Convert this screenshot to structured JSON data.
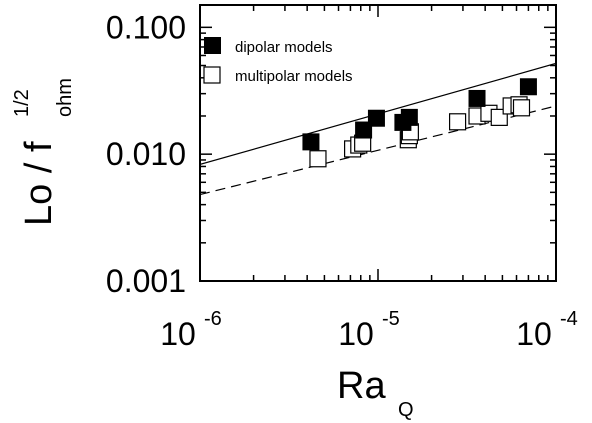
{
  "chart_data": {
    "type": "scatter",
    "x_scale": "log",
    "y_scale": "log",
    "xlim": [
      1e-06,
      0.0001
    ],
    "ylim": [
      0.001,
      0.15
    ],
    "x_ticks": [
      {
        "value": 1e-06,
        "base": "10",
        "exp": "-6"
      },
      {
        "value": 1e-05,
        "base": "10",
        "exp": "-5"
      },
      {
        "value": 0.0001,
        "base": "10",
        "exp": "-4"
      }
    ],
    "y_ticks": [
      {
        "value": 0.1,
        "label": "0.100"
      },
      {
        "value": 0.01,
        "label": "0.010"
      },
      {
        "value": 0.001,
        "label": "0.001"
      }
    ],
    "xlabel": {
      "main": "Ra",
      "sub": "Q"
    },
    "ylabel": {
      "main": "Lo / f",
      "sub": "ohm",
      "sup": "1/2"
    },
    "legend_position": "top-left",
    "series": [
      {
        "name": "dipolar models",
        "marker": "filled-square",
        "color": "#000000",
        "points": [
          [
            4.2e-06,
            0.0125
          ],
          [
            8.3e-06,
            0.0155
          ],
          [
            9.8e-06,
            0.0192
          ],
          [
            1.38e-05,
            0.0178
          ],
          [
            1.5e-05,
            0.0195
          ],
          [
            3.6e-05,
            0.0275
          ],
          [
            7e-05,
            0.034
          ]
        ]
      },
      {
        "name": "multipolar models",
        "marker": "open-square",
        "color": "#000000",
        "points": [
          [
            4.6e-06,
            0.0092
          ],
          [
            7.2e-06,
            0.011
          ],
          [
            7.8e-06,
            0.0118
          ],
          [
            8.2e-06,
            0.0122
          ],
          [
            1.48e-05,
            0.013
          ],
          [
            1.5e-05,
            0.014
          ],
          [
            1.52e-05,
            0.015
          ],
          [
            2.8e-05,
            0.018
          ],
          [
            3.6e-05,
            0.02
          ],
          [
            4.2e-05,
            0.021
          ],
          [
            4.8e-05,
            0.0195
          ],
          [
            5.6e-05,
            0.024
          ],
          [
            6.2e-05,
            0.0245
          ],
          [
            6.4e-05,
            0.0232
          ]
        ]
      }
    ],
    "fit_lines": [
      {
        "style": "solid",
        "from": [
          1e-06,
          0.0083
        ],
        "to": [
          0.0001,
          0.052
        ]
      },
      {
        "style": "dashed",
        "from": [
          1e-06,
          0.0048
        ],
        "to": [
          0.0001,
          0.024
        ]
      }
    ]
  }
}
